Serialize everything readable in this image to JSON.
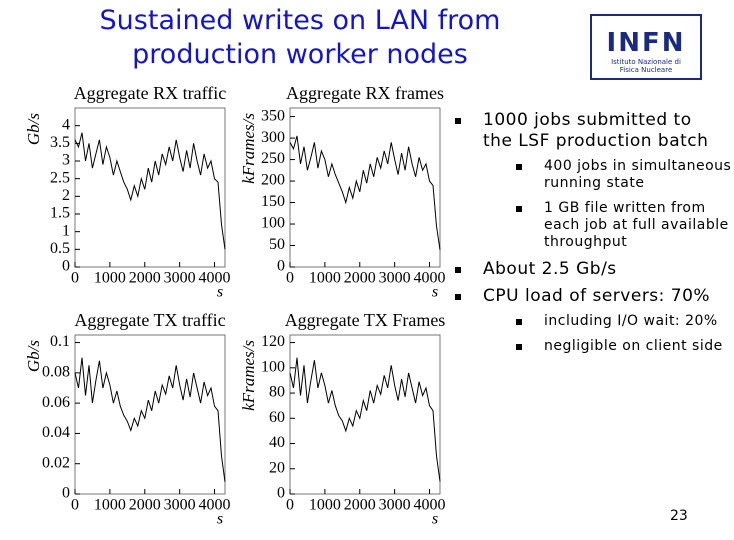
{
  "title": "Sustained writes on LAN from production worker nodes",
  "logo": {
    "name": "INFN",
    "subtitle": "Istituto Nazionale di Fisica Nucleare"
  },
  "bullets": [
    {
      "text": "1000 jobs submitted to the LSF production batch",
      "sub": [
        "400 jobs in simultaneous running state",
        "1 GB file written from each job at full available throughput"
      ]
    },
    {
      "text": "About 2.5 Gb/s",
      "sub": []
    },
    {
      "text": "CPU load of servers: 70%",
      "sub": [
        "including I/O wait: 20%",
        "negligible on client side"
      ]
    }
  ],
  "page_number": "23",
  "chart_data": [
    {
      "type": "line",
      "title": "Aggregate RX traffic",
      "xlabel": "s",
      "ylabel": "Gb/s",
      "color": "#000000",
      "grid": false,
      "x": [
        0,
        100,
        200,
        300,
        400,
        500,
        600,
        700,
        800,
        900,
        1000,
        1100,
        1200,
        1300,
        1400,
        1500,
        1600,
        1700,
        1800,
        1900,
        2000,
        2100,
        2200,
        2300,
        2400,
        2500,
        2600,
        2700,
        2800,
        2900,
        3000,
        3100,
        3200,
        3300,
        3400,
        3500,
        3600,
        3700,
        3800,
        3900,
        4000,
        4100,
        4200,
        4300
      ],
      "values": [
        3.6,
        3.4,
        3.8,
        3.0,
        3.5,
        2.8,
        3.2,
        3.6,
        2.9,
        3.4,
        3.1,
        2.6,
        3.0,
        2.7,
        2.4,
        2.2,
        1.9,
        2.3,
        2.0,
        2.5,
        2.2,
        2.8,
        2.4,
        3.0,
        2.6,
        3.2,
        2.9,
        3.4,
        3.0,
        3.6,
        3.1,
        2.7,
        3.3,
        2.8,
        3.5,
        3.0,
        2.6,
        3.2,
        2.8,
        3.0,
        2.5,
        2.4,
        1.2,
        0.5
      ],
      "xlim": [
        0,
        4300
      ],
      "xticks": [
        0,
        1000,
        2000,
        3000,
        4000
      ],
      "ylim": [
        0,
        4.5
      ],
      "yticks": [
        0,
        0.5,
        1,
        1.5,
        2,
        2.5,
        3,
        3.5,
        4
      ]
    },
    {
      "type": "line",
      "title": "Aggregate RX frames",
      "xlabel": "s",
      "ylabel": "kFrames/s",
      "color": "#000000",
      "grid": false,
      "x": [
        0,
        100,
        200,
        300,
        400,
        500,
        600,
        700,
        800,
        900,
        1000,
        1100,
        1200,
        1300,
        1400,
        1500,
        1600,
        1700,
        1800,
        1900,
        2000,
        2100,
        2200,
        2300,
        2400,
        2500,
        2600,
        2700,
        2800,
        2900,
        3000,
        3100,
        3200,
        3300,
        3400,
        3500,
        3600,
        3700,
        3800,
        3900,
        4000,
        4100,
        4200,
        4300
      ],
      "values": [
        290,
        275,
        305,
        240,
        280,
        225,
        255,
        290,
        230,
        270,
        250,
        210,
        240,
        215,
        195,
        175,
        150,
        185,
        160,
        200,
        175,
        225,
        195,
        240,
        210,
        255,
        230,
        270,
        240,
        290,
        250,
        215,
        265,
        225,
        280,
        240,
        210,
        255,
        225,
        240,
        200,
        190,
        95,
        40
      ],
      "xlim": [
        0,
        4300
      ],
      "xticks": [
        0,
        1000,
        2000,
        3000,
        4000
      ],
      "ylim": [
        0,
        370
      ],
      "yticks": [
        0,
        50,
        100,
        150,
        200,
        250,
        300,
        350
      ]
    },
    {
      "type": "line",
      "title": "Aggregate TX traffic",
      "xlabel": "s",
      "ylabel": "Gb/s",
      "color": "#000000",
      "grid": false,
      "x": [
        0,
        100,
        200,
        300,
        400,
        500,
        600,
        700,
        800,
        900,
        1000,
        1100,
        1200,
        1300,
        1400,
        1500,
        1600,
        1700,
        1800,
        1900,
        2000,
        2100,
        2200,
        2300,
        2400,
        2500,
        2600,
        2700,
        2800,
        2900,
        3000,
        3100,
        3200,
        3300,
        3400,
        3500,
        3600,
        3700,
        3800,
        3900,
        4000,
        4100,
        4200,
        4300
      ],
      "values": [
        0.08,
        0.07,
        0.09,
        0.065,
        0.085,
        0.06,
        0.075,
        0.088,
        0.07,
        0.08,
        0.072,
        0.06,
        0.068,
        0.058,
        0.052,
        0.048,
        0.042,
        0.05,
        0.045,
        0.055,
        0.05,
        0.062,
        0.055,
        0.068,
        0.06,
        0.072,
        0.066,
        0.078,
        0.07,
        0.085,
        0.072,
        0.062,
        0.076,
        0.064,
        0.08,
        0.07,
        0.06,
        0.074,
        0.065,
        0.07,
        0.058,
        0.055,
        0.025,
        0.008
      ],
      "xlim": [
        0,
        4300
      ],
      "xticks": [
        0,
        1000,
        2000,
        3000,
        4000
      ],
      "ylim": [
        0,
        0.105
      ],
      "yticks": [
        0,
        0.02,
        0.04,
        0.06,
        0.08,
        0.1
      ]
    },
    {
      "type": "line",
      "title": "Aggregate TX Frames",
      "xlabel": "s",
      "ylabel": "kFrames/s",
      "color": "#000000",
      "grid": false,
      "x": [
        0,
        100,
        200,
        300,
        400,
        500,
        600,
        700,
        800,
        900,
        1000,
        1100,
        1200,
        1300,
        1400,
        1500,
        1600,
        1700,
        1800,
        1900,
        2000,
        2100,
        2200,
        2300,
        2400,
        2500,
        2600,
        2700,
        2800,
        2900,
        3000,
        3100,
        3200,
        3300,
        3400,
        3500,
        3600,
        3700,
        3800,
        3900,
        4000,
        4100,
        4200,
        4300
      ],
      "values": [
        96,
        84,
        108,
        78,
        102,
        72,
        90,
        106,
        84,
        96,
        86,
        72,
        82,
        70,
        62,
        58,
        50,
        60,
        54,
        66,
        60,
        74,
        66,
        82,
        72,
        86,
        79,
        94,
        84,
        102,
        86,
        74,
        91,
        77,
        96,
        84,
        72,
        89,
        78,
        84,
        70,
        66,
        30,
        10
      ],
      "xlim": [
        0,
        4300
      ],
      "xticks": [
        0,
        1000,
        2000,
        3000,
        4000
      ],
      "ylim": [
        0,
        126
      ],
      "yticks": [
        0,
        20,
        40,
        60,
        80,
        100,
        120
      ]
    }
  ]
}
